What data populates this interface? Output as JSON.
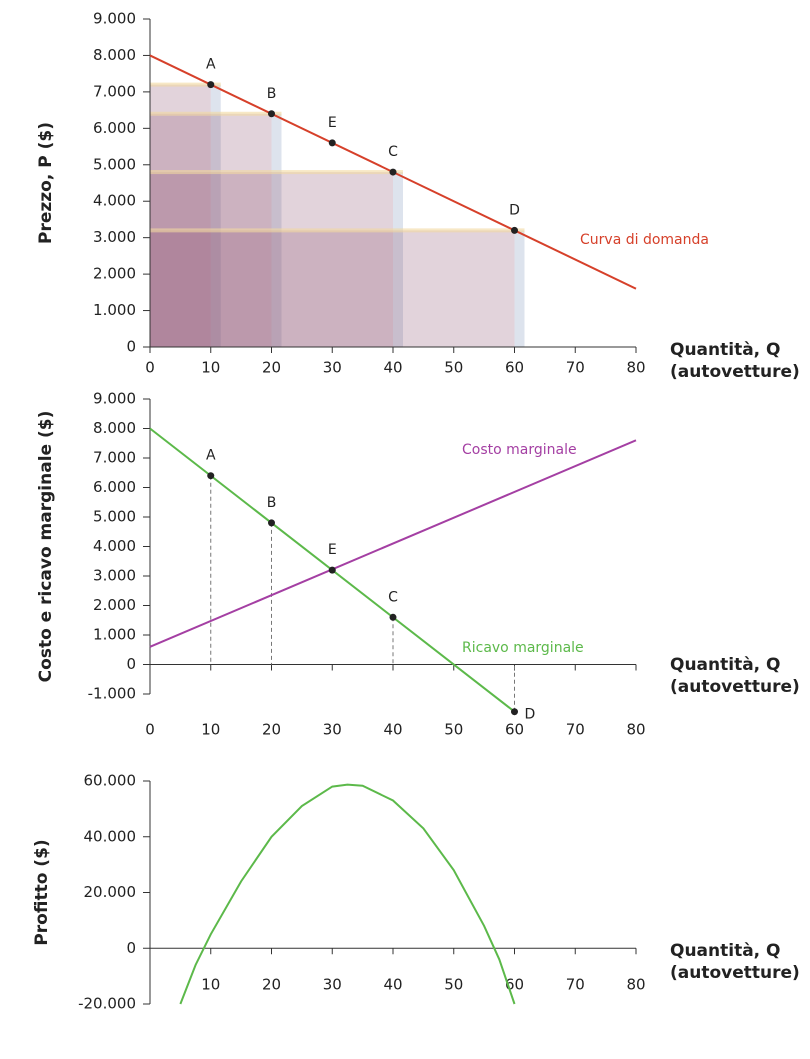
{
  "chart_data": [
    {
      "type": "line",
      "y_label": "Prezzo, P ($)",
      "x_label": "Quantità, Q",
      "x_label_unit": "(autovetture)",
      "xlim": [
        0,
        80
      ],
      "xticks": [
        0,
        10,
        20,
        30,
        40,
        50,
        60,
        70,
        80
      ],
      "ylim": [
        0,
        9000
      ],
      "yticks": [
        0,
        {
          "value": 1000,
          "label": "1.000"
        },
        {
          "value": 2000,
          "label": "2.000"
        },
        {
          "value": 3000,
          "label": "3.000"
        },
        {
          "value": 4000,
          "label": "4.000"
        },
        {
          "value": 5000,
          "label": "5.000"
        },
        {
          "value": 6000,
          "label": "6.000"
        },
        {
          "value": 7000,
          "label": "7.000"
        },
        {
          "value": 8000,
          "label": "8.000"
        },
        {
          "value": 9000,
          "label": "9.000"
        }
      ],
      "series": [
        {
          "name": "Curva di domanda",
          "color": "#d6402a",
          "x": [
            0,
            80
          ],
          "values": [
            8000,
            1600
          ]
        }
      ],
      "points": {
        "labels": [
          "A",
          "B",
          "E",
          "C",
          "D"
        ],
        "x": [
          10,
          20,
          30,
          40,
          60
        ],
        "values": [
          7200,
          6400,
          5600,
          4800,
          3200
        ]
      },
      "revenue_rects": {
        "x": [
          10,
          20,
          40,
          60
        ],
        "values": [
          7200,
          6400,
          4800,
          3200
        ]
      }
    },
    {
      "type": "line",
      "y_label": "Costo e ricavo marginale ($)",
      "x_label": "Quantità, Q",
      "x_label_unit": "(autovetture)",
      "xlim": [
        0,
        80
      ],
      "xticks": [
        0,
        10,
        20,
        30,
        40,
        50,
        60,
        70,
        80
      ],
      "ylim": [
        -1000,
        9000
      ],
      "yticks": [
        {
          "value": -1000,
          "label": "-1.000"
        },
        0,
        {
          "value": 1000,
          "label": "1.000"
        },
        {
          "value": 2000,
          "label": "2.000"
        },
        {
          "value": 3000,
          "label": "3.000"
        },
        {
          "value": 4000,
          "label": "4.000"
        },
        {
          "value": 5000,
          "label": "5.000"
        },
        {
          "value": 6000,
          "label": "6.000"
        },
        {
          "value": 7000,
          "label": "7.000"
        },
        {
          "value": 8000,
          "label": "8.000"
        },
        {
          "value": 9000,
          "label": "9.000"
        }
      ],
      "series": [
        {
          "name": "Costo marginale",
          "color": "#a43fa3",
          "x": [
            0,
            80
          ],
          "values": [
            600,
            7600
          ]
        },
        {
          "name": "Ricavo marginale",
          "color": "#5cb94a",
          "x": [
            0,
            60
          ],
          "values": [
            8000,
            -1600
          ]
        }
      ],
      "points": {
        "labels": [
          "A",
          "B",
          "E",
          "C",
          "D"
        ],
        "x": [
          10,
          20,
          30,
          40,
          60
        ],
        "values": [
          6400,
          4800,
          3200,
          1600,
          -1600
        ]
      },
      "drop_lines": [
        true,
        true,
        false,
        true,
        true
      ]
    },
    {
      "type": "line",
      "y_label": "Profitto ($)",
      "x_label": "Quantità, Q",
      "x_label_unit": "(autovetture)",
      "xlim": [
        0,
        80
      ],
      "xticks": [
        10,
        20,
        30,
        40,
        50,
        60,
        70,
        80
      ],
      "ylim": [
        -20000,
        60000
      ],
      "yticks": [
        {
          "value": -20000,
          "label": "-20.000"
        },
        0,
        {
          "value": 20000,
          "label": "20.000"
        },
        {
          "value": 40000,
          "label": "40.000"
        },
        {
          "value": 60000,
          "label": "60.000"
        }
      ],
      "series": [
        {
          "color": "#5cb94a",
          "x": [
            5,
            7.5,
            10,
            15,
            20,
            25,
            30,
            32.5,
            35,
            40,
            45,
            50,
            55,
            57.5,
            60
          ],
          "values": [
            -20000,
            -6000,
            5000,
            24000,
            40000,
            51000,
            58000,
            58700,
            58300,
            53000,
            43000,
            28000,
            8000,
            -4000,
            -20000
          ]
        }
      ]
    }
  ]
}
